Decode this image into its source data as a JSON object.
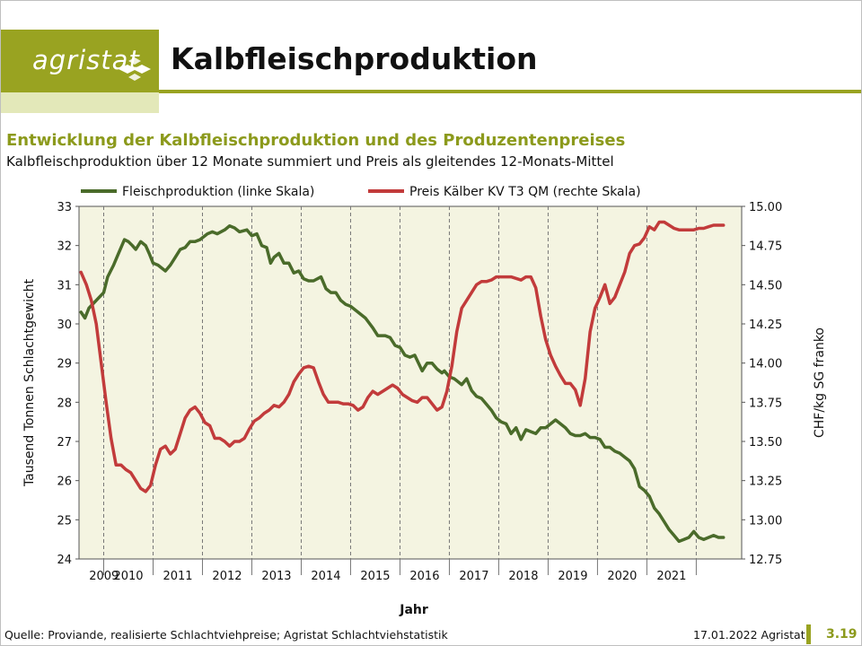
{
  "header": {
    "logo_text": "agristat",
    "title": "Kalbfleischproduktion"
  },
  "chart_data": {
    "type": "line",
    "title": "Entwicklung der Kalbfleischproduktion und des Produzentenpreises",
    "subtitle": "Kalbfleischproduktion über 12 Monate summiert und Preis als gleitendes 12-Monats-Mittel",
    "xlabel": "Jahr",
    "ylabel": "Tausend Tonnen Schlachtgewicht",
    "y2label": "CHF/kg SG franko",
    "xlim": [
      2008.5,
      2021.92
    ],
    "ylim": [
      24,
      33
    ],
    "y2lim": [
      12.75,
      15.0
    ],
    "y_ticks": [
      "24",
      "25",
      "26",
      "27",
      "28",
      "29",
      "30",
      "31",
      "32",
      "33"
    ],
    "y2_ticks": [
      "12.75",
      "13.00",
      "13.25",
      "13.50",
      "13.75",
      "14.00",
      "14.25",
      "14.50",
      "14.75",
      "15.00"
    ],
    "x_ticks": [
      "2009",
      "2010",
      "2011",
      "2012",
      "2013",
      "2014",
      "2015",
      "2016",
      "2017",
      "2018",
      "2019",
      "2020",
      "2021"
    ],
    "grid": true,
    "legend_position": "top",
    "series": [
      {
        "name": "Fleischproduktion (linke Skala)",
        "axis": "left",
        "color": "#4a6b2a",
        "x": [
          2008.54,
          2008.62,
          2008.7,
          2008.85,
          2009.0,
          2009.08,
          2009.2,
          2009.3,
          2009.42,
          2009.5,
          2009.58,
          2009.65,
          2009.75,
          2009.85,
          2009.92,
          2010.0,
          2010.1,
          2010.25,
          2010.35,
          2010.45,
          2010.55,
          2010.65,
          2010.75,
          2010.85,
          2010.95,
          2011.1,
          2011.2,
          2011.3,
          2011.45,
          2011.55,
          2011.65,
          2011.75,
          2011.9,
          2012.0,
          2012.1,
          2012.2,
          2012.3,
          2012.38,
          2012.45,
          2012.55,
          2012.65,
          2012.75,
          2012.85,
          2012.95,
          2013.05,
          2013.15,
          2013.25,
          2013.4,
          2013.5,
          2013.6,
          2013.7,
          2013.8,
          2013.9,
          2014.0,
          2014.1,
          2014.2,
          2014.3,
          2014.45,
          2014.55,
          2014.7,
          2014.8,
          2014.9,
          2015.0,
          2015.1,
          2015.2,
          2015.3,
          2015.45,
          2015.55,
          2015.65,
          2015.75,
          2015.85,
          2015.9,
          2016.0,
          2016.1,
          2016.25,
          2016.35,
          2016.45,
          2016.55,
          2016.65,
          2016.75,
          2016.85,
          2016.95,
          2017.05,
          2017.15,
          2017.25,
          2017.35,
          2017.45,
          2017.55,
          2017.65,
          2017.75,
          2017.85,
          2017.95,
          2018.05,
          2018.15,
          2018.25,
          2018.35,
          2018.45,
          2018.55,
          2018.65,
          2018.75,
          2018.85,
          2018.95,
          2019.05,
          2019.15,
          2019.25,
          2019.35,
          2019.45,
          2019.55,
          2019.65,
          2019.75,
          2019.85,
          2019.95,
          2020.05,
          2020.15,
          2020.25,
          2020.35,
          2020.45,
          2020.55,
          2020.65,
          2020.75,
          2020.85,
          2020.95,
          2021.05,
          2021.15,
          2021.25,
          2021.35,
          2021.45,
          2021.55
        ],
        "values": [
          30.3,
          30.15,
          30.4,
          30.6,
          30.8,
          31.2,
          31.5,
          31.8,
          32.15,
          32.1,
          32.0,
          31.9,
          32.1,
          32.0,
          31.8,
          31.55,
          31.5,
          31.35,
          31.5,
          31.7,
          31.9,
          31.95,
          32.1,
          32.1,
          32.15,
          32.3,
          32.35,
          32.3,
          32.4,
          32.5,
          32.45,
          32.35,
          32.4,
          32.25,
          32.3,
          32.0,
          31.95,
          31.55,
          31.7,
          31.8,
          31.55,
          31.55,
          31.3,
          31.35,
          31.15,
          31.1,
          31.1,
          31.2,
          30.9,
          30.8,
          30.8,
          30.6,
          30.5,
          30.45,
          30.35,
          30.25,
          30.15,
          29.9,
          29.7,
          29.7,
          29.65,
          29.45,
          29.4,
          29.2,
          29.15,
          29.2,
          28.8,
          29.0,
          29.0,
          28.85,
          28.75,
          28.8,
          28.65,
          28.6,
          28.45,
          28.6,
          28.3,
          28.15,
          28.1,
          27.95,
          27.8,
          27.6,
          27.5,
          27.45,
          27.2,
          27.35,
          27.05,
          27.3,
          27.25,
          27.2,
          27.35,
          27.35,
          27.45,
          27.55,
          27.45,
          27.35,
          27.2,
          27.15,
          27.15,
          27.2,
          27.1,
          27.1,
          27.05,
          26.85,
          26.85,
          26.75,
          26.7,
          26.6,
          26.5,
          26.3,
          25.85,
          25.75,
          25.6,
          25.3,
          25.15,
          24.95,
          24.75,
          24.6,
          24.45,
          24.5,
          24.55,
          24.7,
          24.55,
          24.5,
          24.55,
          24.6,
          24.55,
          24.55
        ]
      },
      {
        "name": "Preis Kälber KV T3 QM (rechte Skala)",
        "axis": "right",
        "color": "#c23b3b",
        "x": [
          2008.54,
          2008.65,
          2008.75,
          2008.85,
          2008.95,
          2009.05,
          2009.15,
          2009.25,
          2009.35,
          2009.45,
          2009.55,
          2009.65,
          2009.75,
          2009.85,
          2009.95,
          2010.05,
          2010.15,
          2010.25,
          2010.35,
          2010.45,
          2010.55,
          2010.65,
          2010.75,
          2010.85,
          2010.95,
          2011.05,
          2011.15,
          2011.25,
          2011.35,
          2011.45,
          2011.55,
          2011.65,
          2011.75,
          2011.85,
          2011.95,
          2012.05,
          2012.15,
          2012.25,
          2012.35,
          2012.45,
          2012.55,
          2012.65,
          2012.75,
          2012.85,
          2012.95,
          2013.05,
          2013.15,
          2013.25,
          2013.35,
          2013.45,
          2013.55,
          2013.65,
          2013.75,
          2013.85,
          2013.95,
          2014.05,
          2014.15,
          2014.25,
          2014.35,
          2014.45,
          2014.55,
          2014.65,
          2014.75,
          2014.85,
          2014.95,
          2015.05,
          2015.15,
          2015.25,
          2015.35,
          2015.45,
          2015.55,
          2015.65,
          2015.75,
          2015.85,
          2015.95,
          2016.05,
          2016.15,
          2016.25,
          2016.35,
          2016.45,
          2016.55,
          2016.65,
          2016.75,
          2016.85,
          2016.95,
          2017.05,
          2017.15,
          2017.25,
          2017.35,
          2017.45,
          2017.55,
          2017.65,
          2017.75,
          2017.85,
          2017.95,
          2018.05,
          2018.15,
          2018.25,
          2018.35,
          2018.45,
          2018.55,
          2018.65,
          2018.75,
          2018.85,
          2018.95,
          2019.05,
          2019.15,
          2019.25,
          2019.35,
          2019.45,
          2019.55,
          2019.65,
          2019.75,
          2019.85,
          2019.95,
          2020.05,
          2020.15,
          2020.25,
          2020.35,
          2020.45,
          2020.55,
          2020.65,
          2020.75,
          2020.85,
          2020.95,
          2021.05,
          2021.15,
          2021.25,
          2021.35,
          2021.45,
          2021.55
        ],
        "values": [
          14.58,
          14.5,
          14.4,
          14.25,
          14.0,
          13.75,
          13.52,
          13.35,
          13.35,
          13.32,
          13.3,
          13.25,
          13.2,
          13.18,
          13.22,
          13.35,
          13.45,
          13.47,
          13.42,
          13.45,
          13.55,
          13.65,
          13.7,
          13.72,
          13.68,
          13.62,
          13.6,
          13.52,
          13.52,
          13.5,
          13.47,
          13.5,
          13.5,
          13.52,
          13.58,
          13.63,
          13.65,
          13.68,
          13.7,
          13.73,
          13.72,
          13.75,
          13.8,
          13.88,
          13.93,
          13.97,
          13.98,
          13.97,
          13.88,
          13.8,
          13.75,
          13.75,
          13.75,
          13.74,
          13.74,
          13.73,
          13.7,
          13.72,
          13.78,
          13.82,
          13.8,
          13.82,
          13.84,
          13.86,
          13.84,
          13.8,
          13.78,
          13.76,
          13.75,
          13.78,
          13.78,
          13.74,
          13.7,
          13.72,
          13.82,
          13.98,
          14.2,
          14.35,
          14.4,
          14.45,
          14.5,
          14.52,
          14.52,
          14.53,
          14.55,
          14.55,
          14.55,
          14.55,
          14.54,
          14.53,
          14.55,
          14.55,
          14.48,
          14.3,
          14.15,
          14.05,
          13.98,
          13.92,
          13.87,
          13.87,
          13.83,
          13.73,
          13.9,
          14.2,
          14.35,
          14.42,
          14.5,
          14.38,
          14.42,
          14.5,
          14.58,
          14.7,
          14.75,
          14.76,
          14.8,
          14.87,
          14.85,
          14.9,
          14.9,
          14.88,
          14.86,
          14.85,
          14.85,
          14.85,
          14.85,
          14.86,
          14.86,
          14.87,
          14.88,
          14.88,
          14.88
        ]
      }
    ]
  },
  "footer": {
    "source": "Quelle: Proviande, realisierte Schlachtviehpreise; Agristat Schlachtviehstatistik",
    "date": "17.01.2022 Agristat",
    "page": "3.19"
  }
}
